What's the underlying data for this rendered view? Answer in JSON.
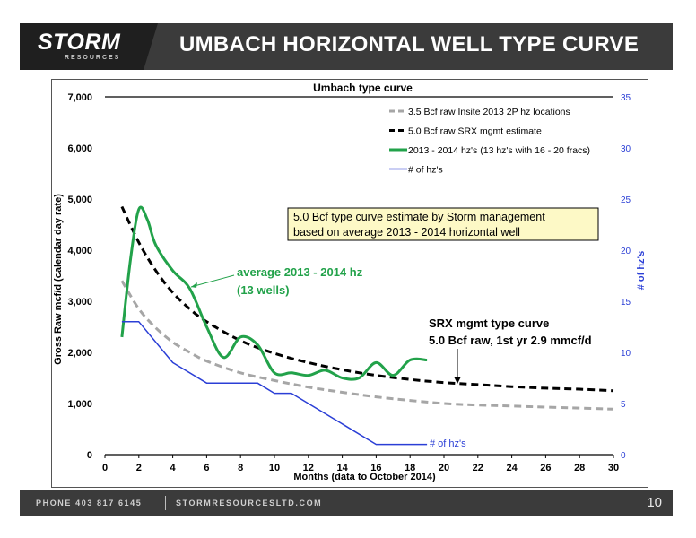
{
  "header": {
    "logo_main": "STORM",
    "logo_sub": "RESOURCES",
    "title": "UMBACH HORIZONTAL WELL TYPE CURVE"
  },
  "footer": {
    "phone": "PHONE 403 817 6145",
    "website": "STORMRESOURCESLTD.COM",
    "page": "10"
  },
  "colors": {
    "header_bg": "#3b3b3b",
    "series_insite": "#a6a6a6",
    "series_srx": "#000000",
    "series_hz": "#22a24a",
    "series_count": "#2b3fd6",
    "annotation_green": "#22a24a"
  },
  "annotations": {
    "box_line1": "5.0 Bcf type curve estimate by Storm management",
    "box_line2": "based on average 2013 - 2014 horizontal well",
    "avg_line1": "average 2013 - 2014 hz",
    "avg_line2": "(13 wells)",
    "srx_line1": "SRX mgmt type curve",
    "srx_line2": "5.0 Bcf raw, 1st yr 2.9 mmcf/d",
    "count_label": "# of hz's"
  },
  "chart_data": {
    "type": "line",
    "title": "Umbach type curve",
    "xlabel": "Months (data to October 2014)",
    "ylabel": "Gross Raw mcf/d (calendar day rate)",
    "y2label": "# of hz's",
    "xlim": [
      0,
      30
    ],
    "ylim": [
      0,
      7000
    ],
    "y2lim": [
      0,
      35
    ],
    "x_ticks": [
      "0",
      "2",
      "4",
      "6",
      "8",
      "10",
      "12",
      "14",
      "16",
      "18",
      "20",
      "22",
      "24",
      "26",
      "28",
      "30"
    ],
    "y_ticks": [
      "0",
      "1,000",
      "2,000",
      "3,000",
      "4,000",
      "5,000",
      "6,000",
      "7,000"
    ],
    "y2_ticks": [
      "0",
      "5",
      "10",
      "15",
      "20",
      "25",
      "30",
      "35"
    ],
    "legend_position": "top-right",
    "grid": false,
    "series": [
      {
        "name": "3.5 Bcf raw Insite 2013 2P hz locations",
        "axis": "left",
        "style": "dashed",
        "x": [
          1,
          2,
          3,
          4,
          5,
          6,
          8,
          10,
          12,
          14,
          16,
          18,
          20,
          22,
          24,
          26,
          28,
          30
        ],
        "y": [
          3400,
          2850,
          2480,
          2200,
          2000,
          1830,
          1600,
          1450,
          1320,
          1220,
          1130,
          1060,
          1000,
          970,
          950,
          930,
          910,
          890
        ]
      },
      {
        "name": "5.0 Bcf raw SRX mgmt estimate",
        "axis": "left",
        "style": "dashed",
        "x": [
          1,
          2,
          3,
          4,
          5,
          6,
          8,
          10,
          12,
          14,
          16,
          18,
          20,
          22,
          24,
          26,
          28,
          30
        ],
        "y": [
          4850,
          4150,
          3600,
          3170,
          2850,
          2600,
          2230,
          1980,
          1800,
          1660,
          1550,
          1470,
          1410,
          1370,
          1330,
          1300,
          1280,
          1250
        ]
      },
      {
        "name": "2013 - 2014 hz's (13 hz's with 16 - 20 fracs)",
        "axis": "left",
        "style": "solid",
        "x": [
          1,
          1.5,
          2,
          2.5,
          3,
          4,
          5,
          6,
          7,
          8,
          9,
          10,
          11,
          12,
          13,
          14,
          15,
          16,
          17,
          18,
          19
        ],
        "y": [
          2300,
          3800,
          4800,
          4600,
          4100,
          3600,
          3250,
          2500,
          1900,
          2300,
          2150,
          1600,
          1600,
          1550,
          1650,
          1500,
          1500,
          1800,
          1550,
          1850,
          1850
        ]
      },
      {
        "name": "# of hz's",
        "axis": "right",
        "style": "solid",
        "x": [
          1,
          2,
          2,
          4,
          6,
          9,
          10,
          11,
          16,
          19
        ],
        "y": [
          13,
          13,
          13,
          9,
          7,
          7,
          6,
          6,
          1,
          1
        ]
      }
    ]
  }
}
